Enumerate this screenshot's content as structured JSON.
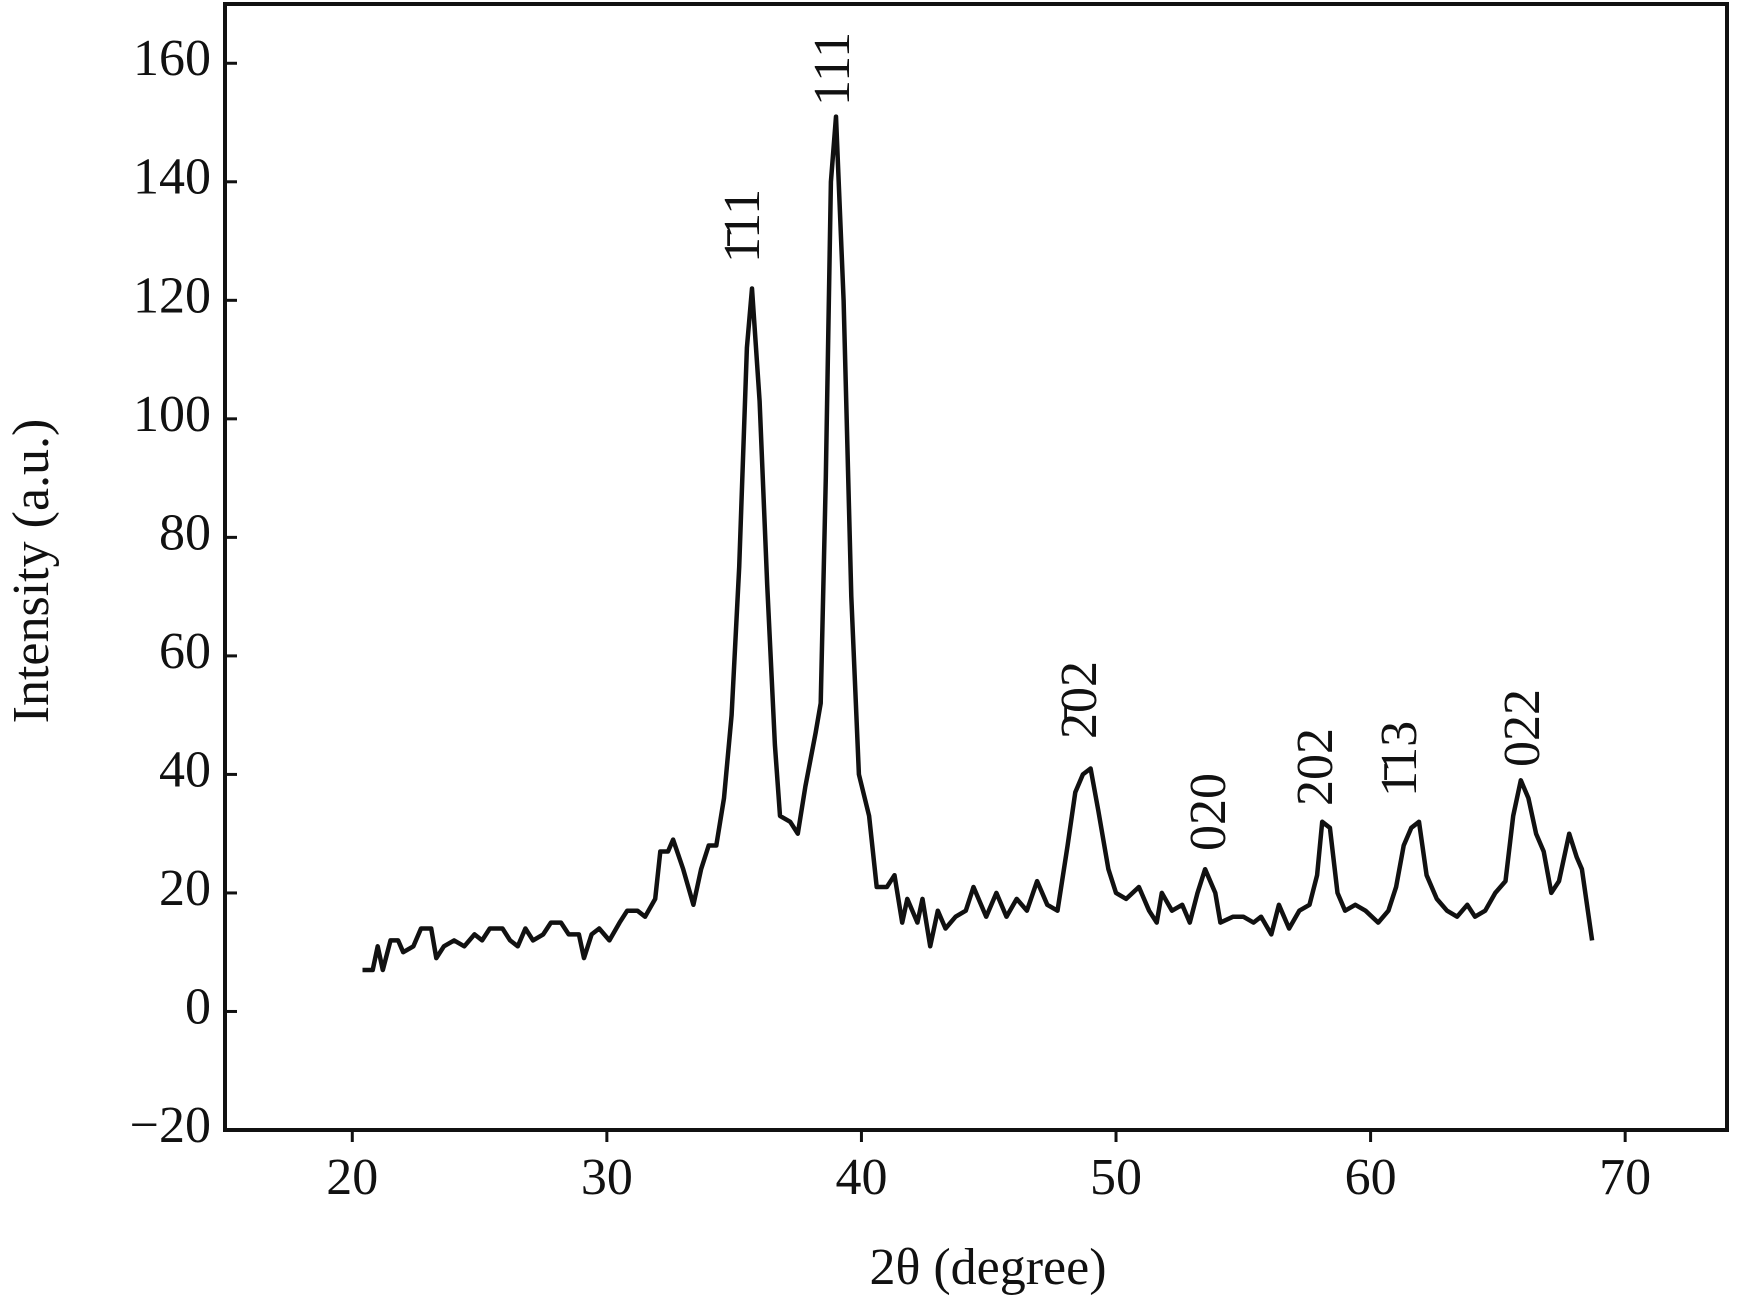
{
  "chart_data": {
    "type": "line",
    "xlabel": "2θ (degree)",
    "ylabel": "Intensity (a.u.)",
    "color": "#111111",
    "xlim": [
      15,
      74
    ],
    "xticks": [
      20,
      30,
      40,
      50,
      60,
      70
    ],
    "ylim": [
      -20,
      170
    ],
    "yticks": [
      {
        "value": -20,
        "label": "−20"
      },
      0,
      20,
      40,
      60,
      80,
      100,
      120,
      140,
      160
    ],
    "annotations": [
      "1̄11",
      "111",
      "2̄02",
      "020",
      "202",
      "1̄13",
      "022"
    ],
    "x": [
      20.4,
      20.8,
      21.0,
      21.2,
      21.5,
      21.8,
      22.0,
      22.4,
      22.7,
      23.1,
      23.3,
      23.6,
      24.0,
      24.4,
      24.8,
      25.1,
      25.4,
      25.9,
      26.2,
      26.5,
      26.8,
      27.1,
      27.5,
      27.8,
      28.2,
      28.5,
      28.9,
      29.1,
      29.4,
      29.7,
      30.1,
      30.5,
      30.8,
      31.2,
      31.5,
      31.9,
      32.1,
      32.4,
      32.6,
      33.0,
      33.4,
      33.7,
      34.0,
      34.3,
      34.6,
      34.9,
      35.2,
      35.5,
      35.7,
      36.0,
      36.3,
      36.6,
      36.8,
      37.2,
      37.5,
      37.8,
      38.2,
      38.4,
      38.6,
      38.8,
      39.0,
      39.3,
      39.6,
      39.9,
      40.3,
      40.6,
      41.0,
      41.3,
      41.6,
      41.8,
      42.2,
      42.4,
      42.7,
      43.0,
      43.3,
      43.7,
      44.1,
      44.4,
      44.9,
      45.3,
      45.7,
      46.1,
      46.5,
      46.9,
      47.3,
      47.7,
      48.1,
      48.4,
      48.7,
      49.0,
      49.3,
      49.7,
      50.0,
      50.4,
      50.9,
      51.3,
      51.6,
      51.8,
      52.2,
      52.6,
      52.9,
      53.2,
      53.5,
      53.9,
      54.1,
      54.6,
      55.0,
      55.4,
      55.7,
      56.1,
      56.4,
      56.8,
      57.2,
      57.6,
      57.9,
      58.1,
      58.4,
      58.7,
      59.0,
      59.4,
      59.8,
      60.3,
      60.7,
      61.0,
      61.3,
      61.6,
      61.9,
      62.2,
      62.6,
      63.0,
      63.4,
      63.8,
      64.1,
      64.5,
      64.9,
      65.3,
      65.6,
      65.9,
      66.2,
      66.5,
      66.8,
      67.1,
      67.4,
      67.8,
      68.1,
      68.3,
      68.7
    ],
    "values": [
      7,
      7,
      11,
      7,
      12,
      12,
      10,
      11,
      14,
      14,
      9,
      11,
      12,
      11,
      13,
      12,
      14,
      14,
      12,
      11,
      14,
      12,
      13,
      15,
      15,
      13,
      13,
      9,
      13,
      14,
      12,
      15,
      17,
      17,
      16,
      19,
      27,
      27,
      29,
      24,
      18,
      24,
      28,
      28,
      36,
      50,
      75,
      112,
      122,
      103,
      72,
      45,
      33,
      32,
      30,
      38,
      47,
      52,
      90,
      140,
      151,
      120,
      70,
      40,
      33,
      21,
      21,
      23,
      15,
      19,
      15,
      19,
      11,
      17,
      14,
      16,
      17,
      21,
      16,
      20,
      16,
      19,
      17,
      22,
      18,
      17,
      28,
      37,
      40,
      41,
      34,
      24,
      20,
      19,
      21,
      17,
      15,
      20,
      17,
      18,
      15,
      20,
      24,
      20,
      15,
      16,
      16,
      15,
      16,
      13,
      18,
      14,
      17,
      18,
      23,
      32,
      31,
      20,
      17,
      18,
      17,
      15,
      17,
      21,
      28,
      31,
      32,
      23,
      19,
      17,
      16,
      18,
      16,
      17,
      20,
      22,
      33,
      39,
      36,
      30,
      27,
      20,
      22,
      30,
      26,
      24,
      12
    ]
  }
}
